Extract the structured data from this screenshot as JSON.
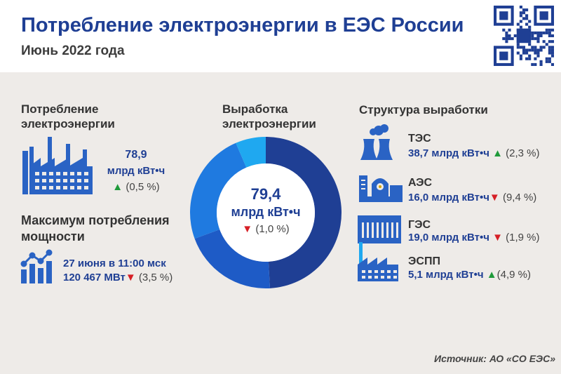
{
  "header": {
    "title": "Потребление электроэнергии в ЕЭС России",
    "subtitle": "Июнь 2022 года"
  },
  "consumption": {
    "heading_line1": "Потребление",
    "heading_line2": "электроэнергии",
    "value": "78,9",
    "unit": "млрд кВт•ч",
    "arrow": "▲",
    "change": "(0,5 %)"
  },
  "peak": {
    "heading_line1": "Максимум потребления",
    "heading_line2": "мощности",
    "date": "27 июня в 11:00 мск",
    "value": "120 467 МВт",
    "arrow": "▼",
    "change": "(3,5 %)"
  },
  "generation": {
    "heading_line1": "Выработка",
    "heading_line2": "электроэнергии",
    "value": "79,4",
    "unit": "млрд кВт•ч",
    "arrow": "▼",
    "change": "(1,0 %)"
  },
  "structure": {
    "heading": "Структура выработки",
    "items": [
      {
        "label": "ТЭС",
        "value": "38,7 млрд кВт•ч",
        "arrow": "▲",
        "change": "(2,3 %)"
      },
      {
        "label": "АЭС",
        "value": "16,0 млрд кВт•ч",
        "arrow": "▼",
        "change": "(9,4 %)"
      },
      {
        "label": "ГЭС",
        "value": "19,0 млрд кВт•ч",
        "arrow": "▼",
        "change": "(1,9 %)"
      },
      {
        "label": "ЭСПП",
        "value": "5,1 млрд кВт•ч",
        "arrow": "▲",
        "change": "(4,9 %)"
      }
    ]
  },
  "chart_data": {
    "type": "pie",
    "categories": [
      "ТЭС",
      "АЭС",
      "ГЭС",
      "ЭСПП"
    ],
    "values": [
      38.7,
      16.0,
      19.0,
      5.1
    ],
    "colors": [
      "#1f3f94",
      "#1e5bc6",
      "#1f7ae0",
      "#1fa8f0"
    ],
    "title": "",
    "donut": true
  },
  "source": "Источник: АО «СО ЕЭС»",
  "colors": {
    "accent": "#1f3f94",
    "icon": "#2a63c4",
    "up": "#1f9a3a",
    "down": "#d61f26",
    "panel": "#eeebe8"
  },
  "icons": [
    "qr-code",
    "factory-icon",
    "peak-chart-icon",
    "thermal-plant-icon",
    "nuclear-plant-icon",
    "hydro-dam-icon",
    "renewable-plant-icon"
  ]
}
